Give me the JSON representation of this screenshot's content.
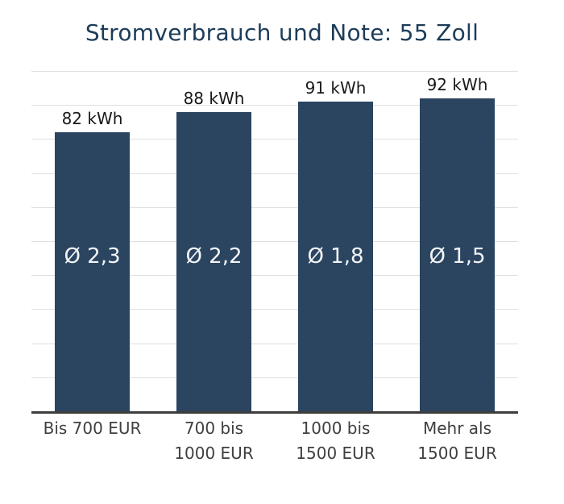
{
  "chart_data": {
    "type": "bar",
    "title": "Stromverbrauch und Note: 55 Zoll",
    "categories": [
      "Bis 700 EUR",
      "700 bis 1000 EUR",
      "1000 bis 1500 EUR",
      "Mehr als 1500 EUR"
    ],
    "category_lines": [
      [
        "Bis 700 EUR",
        ""
      ],
      [
        "700 bis",
        "1000 EUR"
      ],
      [
        "1000 bis",
        "1500 EUR"
      ],
      [
        "Mehr als",
        "1500 EUR"
      ]
    ],
    "values": [
      82,
      88,
      91,
      92
    ],
    "value_unit": "kWh",
    "value_labels": [
      "82 kWh",
      "88 kWh",
      "91 kWh",
      "92 kWh"
    ],
    "bar_note_labels": [
      "Ø 2,3",
      "Ø 2,2",
      "Ø 1,8",
      "Ø 1,5"
    ],
    "xlabel": "",
    "ylabel": "",
    "ylim": [
      0,
      100
    ],
    "grid": true,
    "gridline_step": 10,
    "legend": "none",
    "colors": {
      "bar": "#2b4560",
      "title": "#1d3c59",
      "value_label": "#1a1a1a",
      "note_label": "#f2f4f6",
      "category_label": "#3f3f3f",
      "gridline": "#e0e0e0",
      "axis": "#3d3d3d",
      "background": "#ffffff"
    }
  }
}
